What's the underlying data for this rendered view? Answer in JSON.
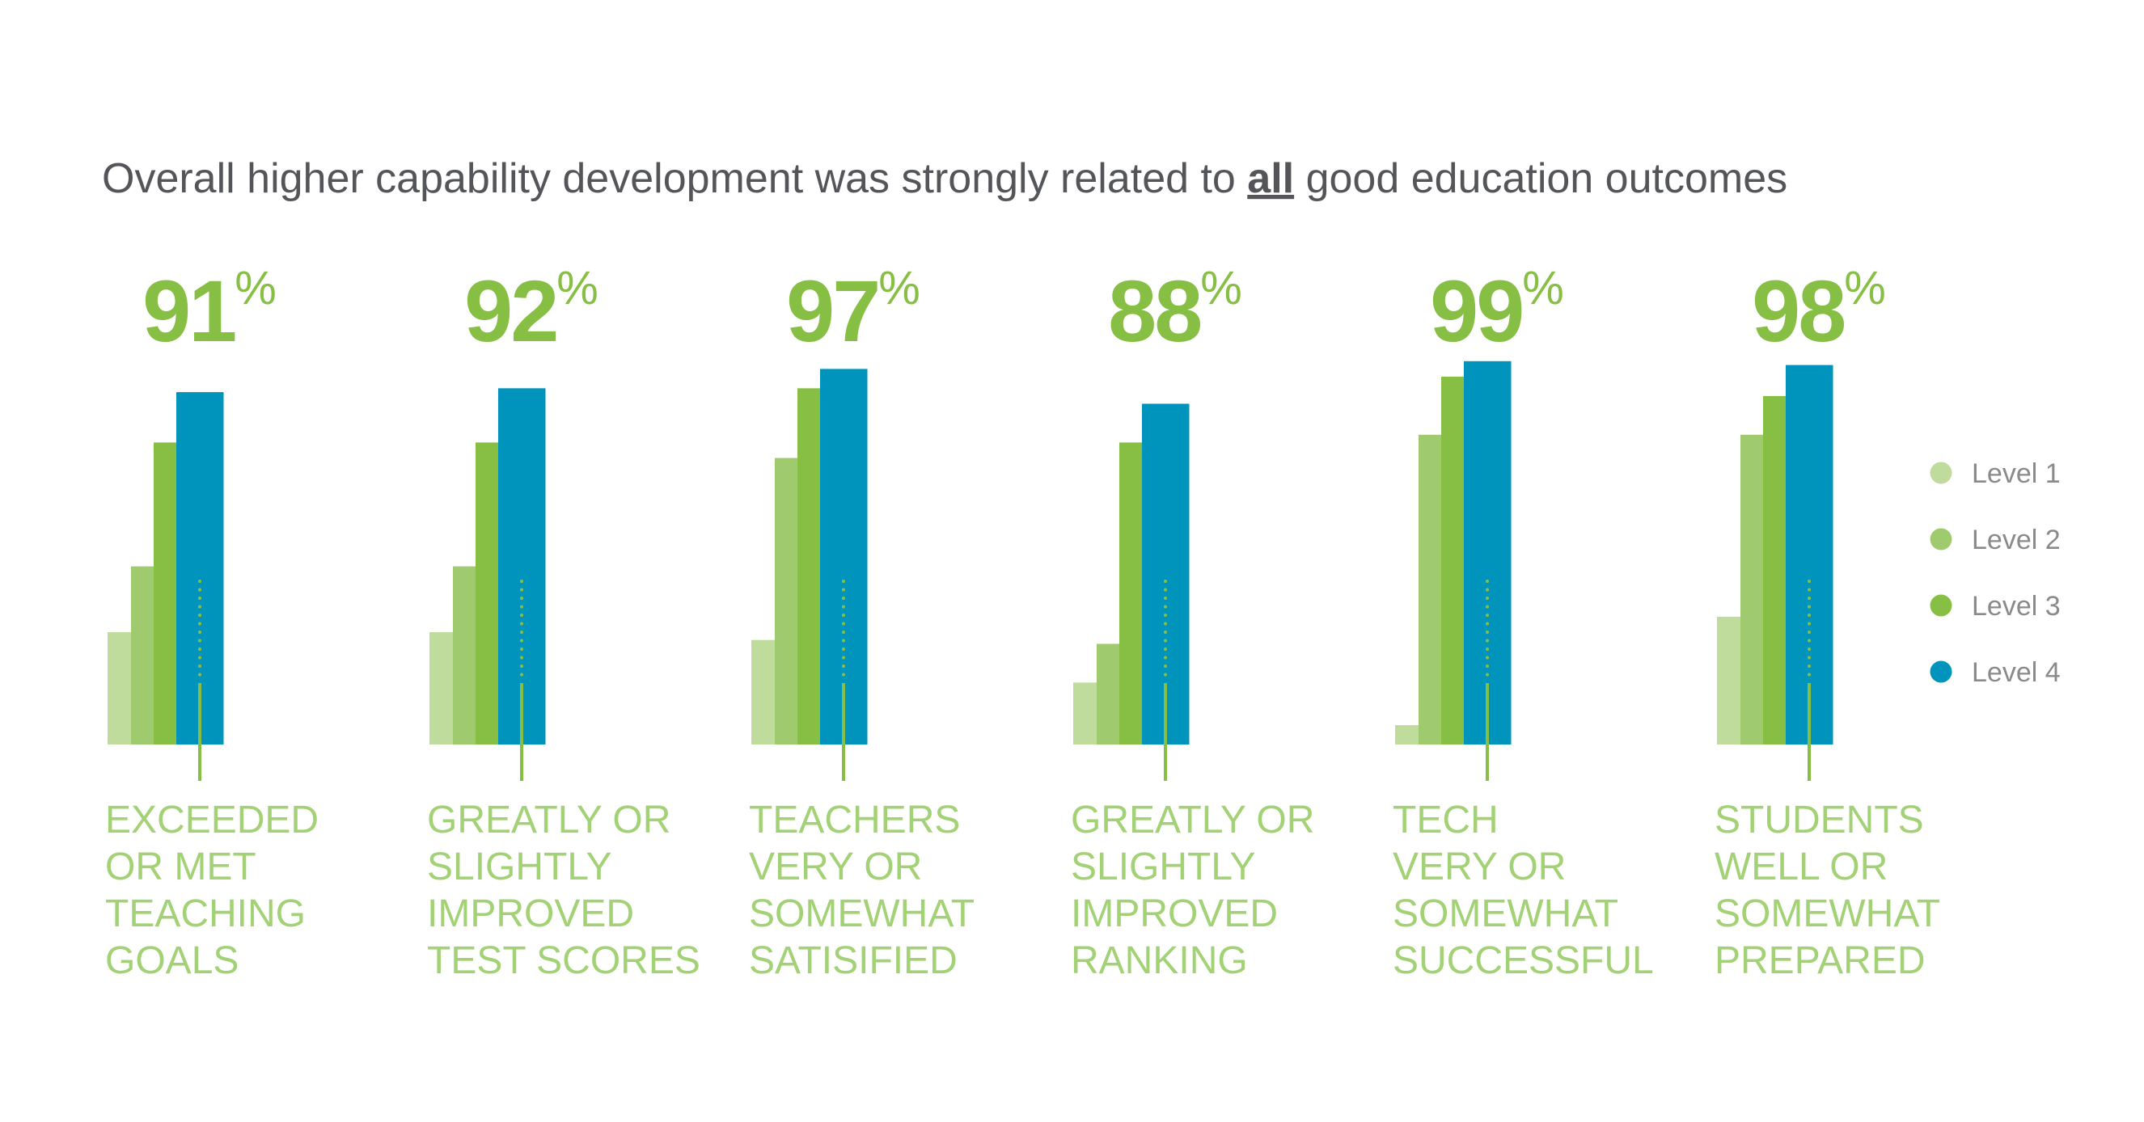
{
  "title": {
    "before": "Overall higher capability development was strongly related to ",
    "emphasis": "all",
    "after": " good education outcomes"
  },
  "chart_data": {
    "type": "bar",
    "title": "Overall higher capability development was strongly related to all good education outcomes",
    "legend_position": "right",
    "grid": false,
    "ylim": [
      0,
      100
    ],
    "series": [
      {
        "name": "Level 1",
        "color": "#bfdc9c"
      },
      {
        "name": "Level 2",
        "color": "#a0ca6e"
      },
      {
        "name": "Level 3",
        "color": "#86bf43"
      },
      {
        "name": "Level 4",
        "color": "#0093bb"
      }
    ],
    "groups": [
      {
        "headline": "91",
        "unit": "%",
        "label": [
          "EXCEEDED",
          "OR MET",
          "TEACHING",
          "GOALS"
        ],
        "values": [
          29,
          46,
          78,
          91
        ]
      },
      {
        "headline": "92",
        "unit": "%",
        "label": [
          "GREATLY OR",
          "SLIGHTLY",
          "IMPROVED",
          "TEST SCORES"
        ],
        "values": [
          29,
          46,
          78,
          92
        ]
      },
      {
        "headline": "97",
        "unit": "%",
        "label": [
          "TEACHERS",
          "VERY OR",
          "SOMEWHAT",
          "SATISIFIED"
        ],
        "values": [
          27,
          74,
          92,
          97
        ]
      },
      {
        "headline": "88",
        "unit": "%",
        "label": [
          "GREATLY OR",
          "SLIGHTLY",
          "IMPROVED",
          "RANKING"
        ],
        "values": [
          16,
          26,
          78,
          88
        ]
      },
      {
        "headline": "99",
        "unit": "%",
        "label": [
          "TECH",
          "VERY OR",
          "SOMEWHAT",
          "SUCCESSFUL"
        ],
        "values": [
          5,
          80,
          95,
          99
        ]
      },
      {
        "headline": "98",
        "unit": "%",
        "label": [
          "STUDENTS",
          "WELL OR",
          "SOMEWHAT",
          "PREPARED"
        ],
        "values": [
          33,
          80,
          90,
          98
        ]
      }
    ],
    "marker_color": "#86bf43"
  }
}
